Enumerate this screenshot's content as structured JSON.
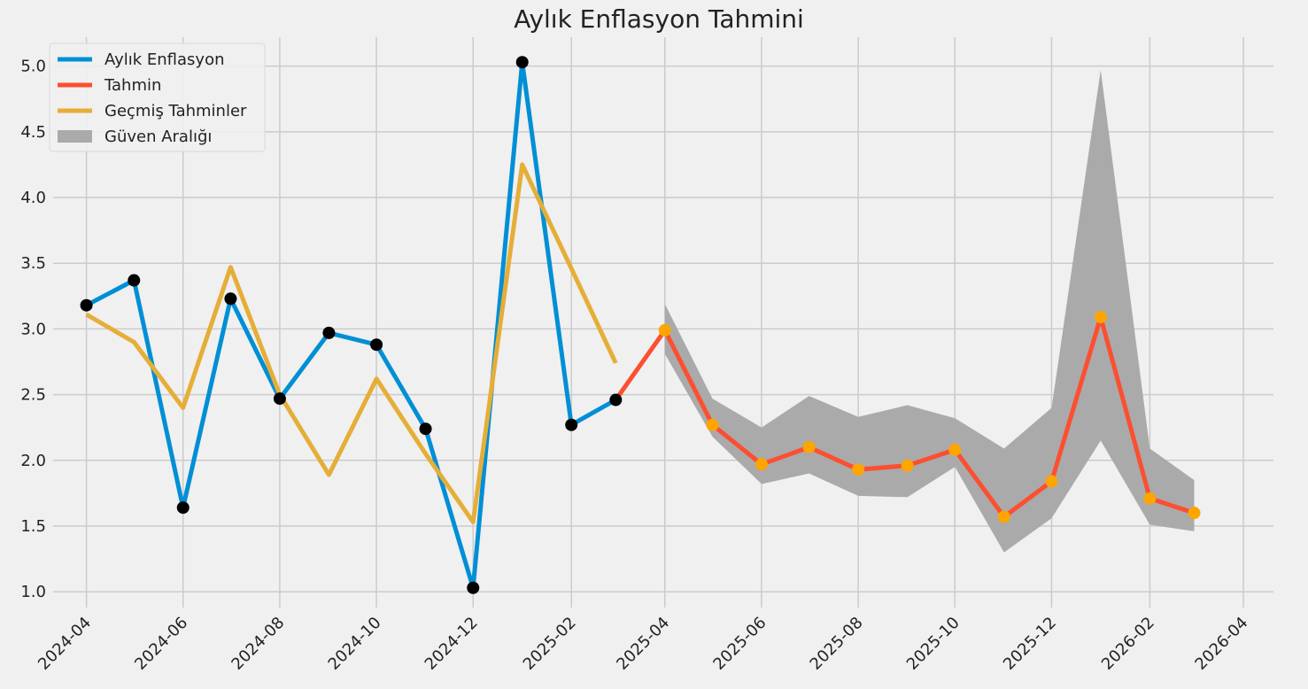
{
  "chart_data": {
    "type": "line",
    "title": "Aylık Enflasyon Tahmini",
    "xlabel": "",
    "ylabel": "",
    "x_axis_type": "date",
    "xlim": [
      "2024-03-11",
      "2026-04-20"
    ],
    "ylim": [
      0.88,
      5.22
    ],
    "x_ticks": [
      "2024-04",
      "2024-06",
      "2024-08",
      "2024-10",
      "2024-12",
      "2025-02",
      "2025-04",
      "2025-06",
      "2025-08",
      "2025-10",
      "2025-12",
      "2026-02",
      "2026-04"
    ],
    "y_ticks": [
      "1.0",
      "1.5",
      "2.0",
      "2.5",
      "3.0",
      "3.5",
      "4.0",
      "4.5",
      "5.0"
    ],
    "grid": true,
    "legend_position": "top-left",
    "series": [
      {
        "name": "Aylık Enflasyon",
        "color": "#008fd5",
        "marker_color": "#000000",
        "points": [
          {
            "x": "2024-04-01",
            "y": 3.18
          },
          {
            "x": "2024-05-01",
            "y": 3.37
          },
          {
            "x": "2024-06-01",
            "y": 1.64
          },
          {
            "x": "2024-07-01",
            "y": 3.23
          },
          {
            "x": "2024-08-01",
            "y": 2.47
          },
          {
            "x": "2024-09-01",
            "y": 2.97
          },
          {
            "x": "2024-10-01",
            "y": 2.88
          },
          {
            "x": "2024-11-01",
            "y": 2.24
          },
          {
            "x": "2024-12-01",
            "y": 1.03
          },
          {
            "x": "2025-01-01",
            "y": 5.03
          },
          {
            "x": "2025-02-01",
            "y": 2.27
          },
          {
            "x": "2025-03-01",
            "y": 2.46
          }
        ]
      },
      {
        "name": "Tahmin",
        "color": "#fc4f30",
        "marker_color": "#ffa500",
        "points": [
          {
            "x": "2025-03-01",
            "y": 2.46
          },
          {
            "x": "2025-04-01",
            "y": 2.99
          },
          {
            "x": "2025-05-01",
            "y": 2.27
          },
          {
            "x": "2025-06-01",
            "y": 1.97
          },
          {
            "x": "2025-07-01",
            "y": 2.1
          },
          {
            "x": "2025-08-01",
            "y": 1.93
          },
          {
            "x": "2025-09-01",
            "y": 1.96
          },
          {
            "x": "2025-10-01",
            "y": 2.08
          },
          {
            "x": "2025-11-01",
            "y": 1.57
          },
          {
            "x": "2025-12-01",
            "y": 1.84
          },
          {
            "x": "2026-01-01",
            "y": 3.09
          },
          {
            "x": "2026-02-01",
            "y": 1.71
          },
          {
            "x": "2026-03-01",
            "y": 1.6
          }
        ]
      },
      {
        "name": "Geçmiş Tahminler",
        "color": "#e5ae38",
        "points": [
          {
            "x": "2024-04-01",
            "y": 3.11
          },
          {
            "x": "2024-05-01",
            "y": 2.9
          },
          {
            "x": "2024-06-01",
            "y": 2.4
          },
          {
            "x": "2024-07-01",
            "y": 3.47
          },
          {
            "x": "2024-08-01",
            "y": 2.5
          },
          {
            "x": "2024-09-01",
            "y": 1.89
          },
          {
            "x": "2024-10-01",
            "y": 2.62
          },
          {
            "x": "2024-11-01",
            "y": 2.05
          },
          {
            "x": "2024-12-01",
            "y": 1.53
          },
          {
            "x": "2025-01-01",
            "y": 4.25
          },
          {
            "x": "2025-02-01",
            "y": 3.46
          },
          {
            "x": "2025-03-01",
            "y": 2.74
          }
        ]
      }
    ],
    "band": {
      "name": "Güven Aralığı",
      "color": "#aaaaaa",
      "points": [
        {
          "x": "2025-04-01",
          "low": 2.81,
          "high": 3.19
        },
        {
          "x": "2025-05-01",
          "low": 2.18,
          "high": 2.47
        },
        {
          "x": "2025-06-01",
          "low": 1.82,
          "high": 2.25
        },
        {
          "x": "2025-07-01",
          "low": 1.9,
          "high": 2.49
        },
        {
          "x": "2025-08-01",
          "low": 1.73,
          "high": 2.33
        },
        {
          "x": "2025-09-01",
          "low": 1.72,
          "high": 2.42
        },
        {
          "x": "2025-10-01",
          "low": 1.95,
          "high": 2.32
        },
        {
          "x": "2025-11-01",
          "low": 1.3,
          "high": 2.09
        },
        {
          "x": "2025-12-01",
          "low": 1.56,
          "high": 2.4
        },
        {
          "x": "2026-01-01",
          "low": 2.15,
          "high": 4.97
        },
        {
          "x": "2026-02-01",
          "low": 1.51,
          "high": 2.09
        },
        {
          "x": "2026-03-01",
          "low": 1.46,
          "high": 1.85
        }
      ]
    },
    "legend": [
      "Aylık Enflasyon",
      "Tahmin",
      "Geçmiş Tahminler",
      "Güven Aralığı"
    ],
    "colors": {
      "background": "#f0f0f0",
      "grid": "#cbcbcb",
      "text": "#222222"
    }
  }
}
